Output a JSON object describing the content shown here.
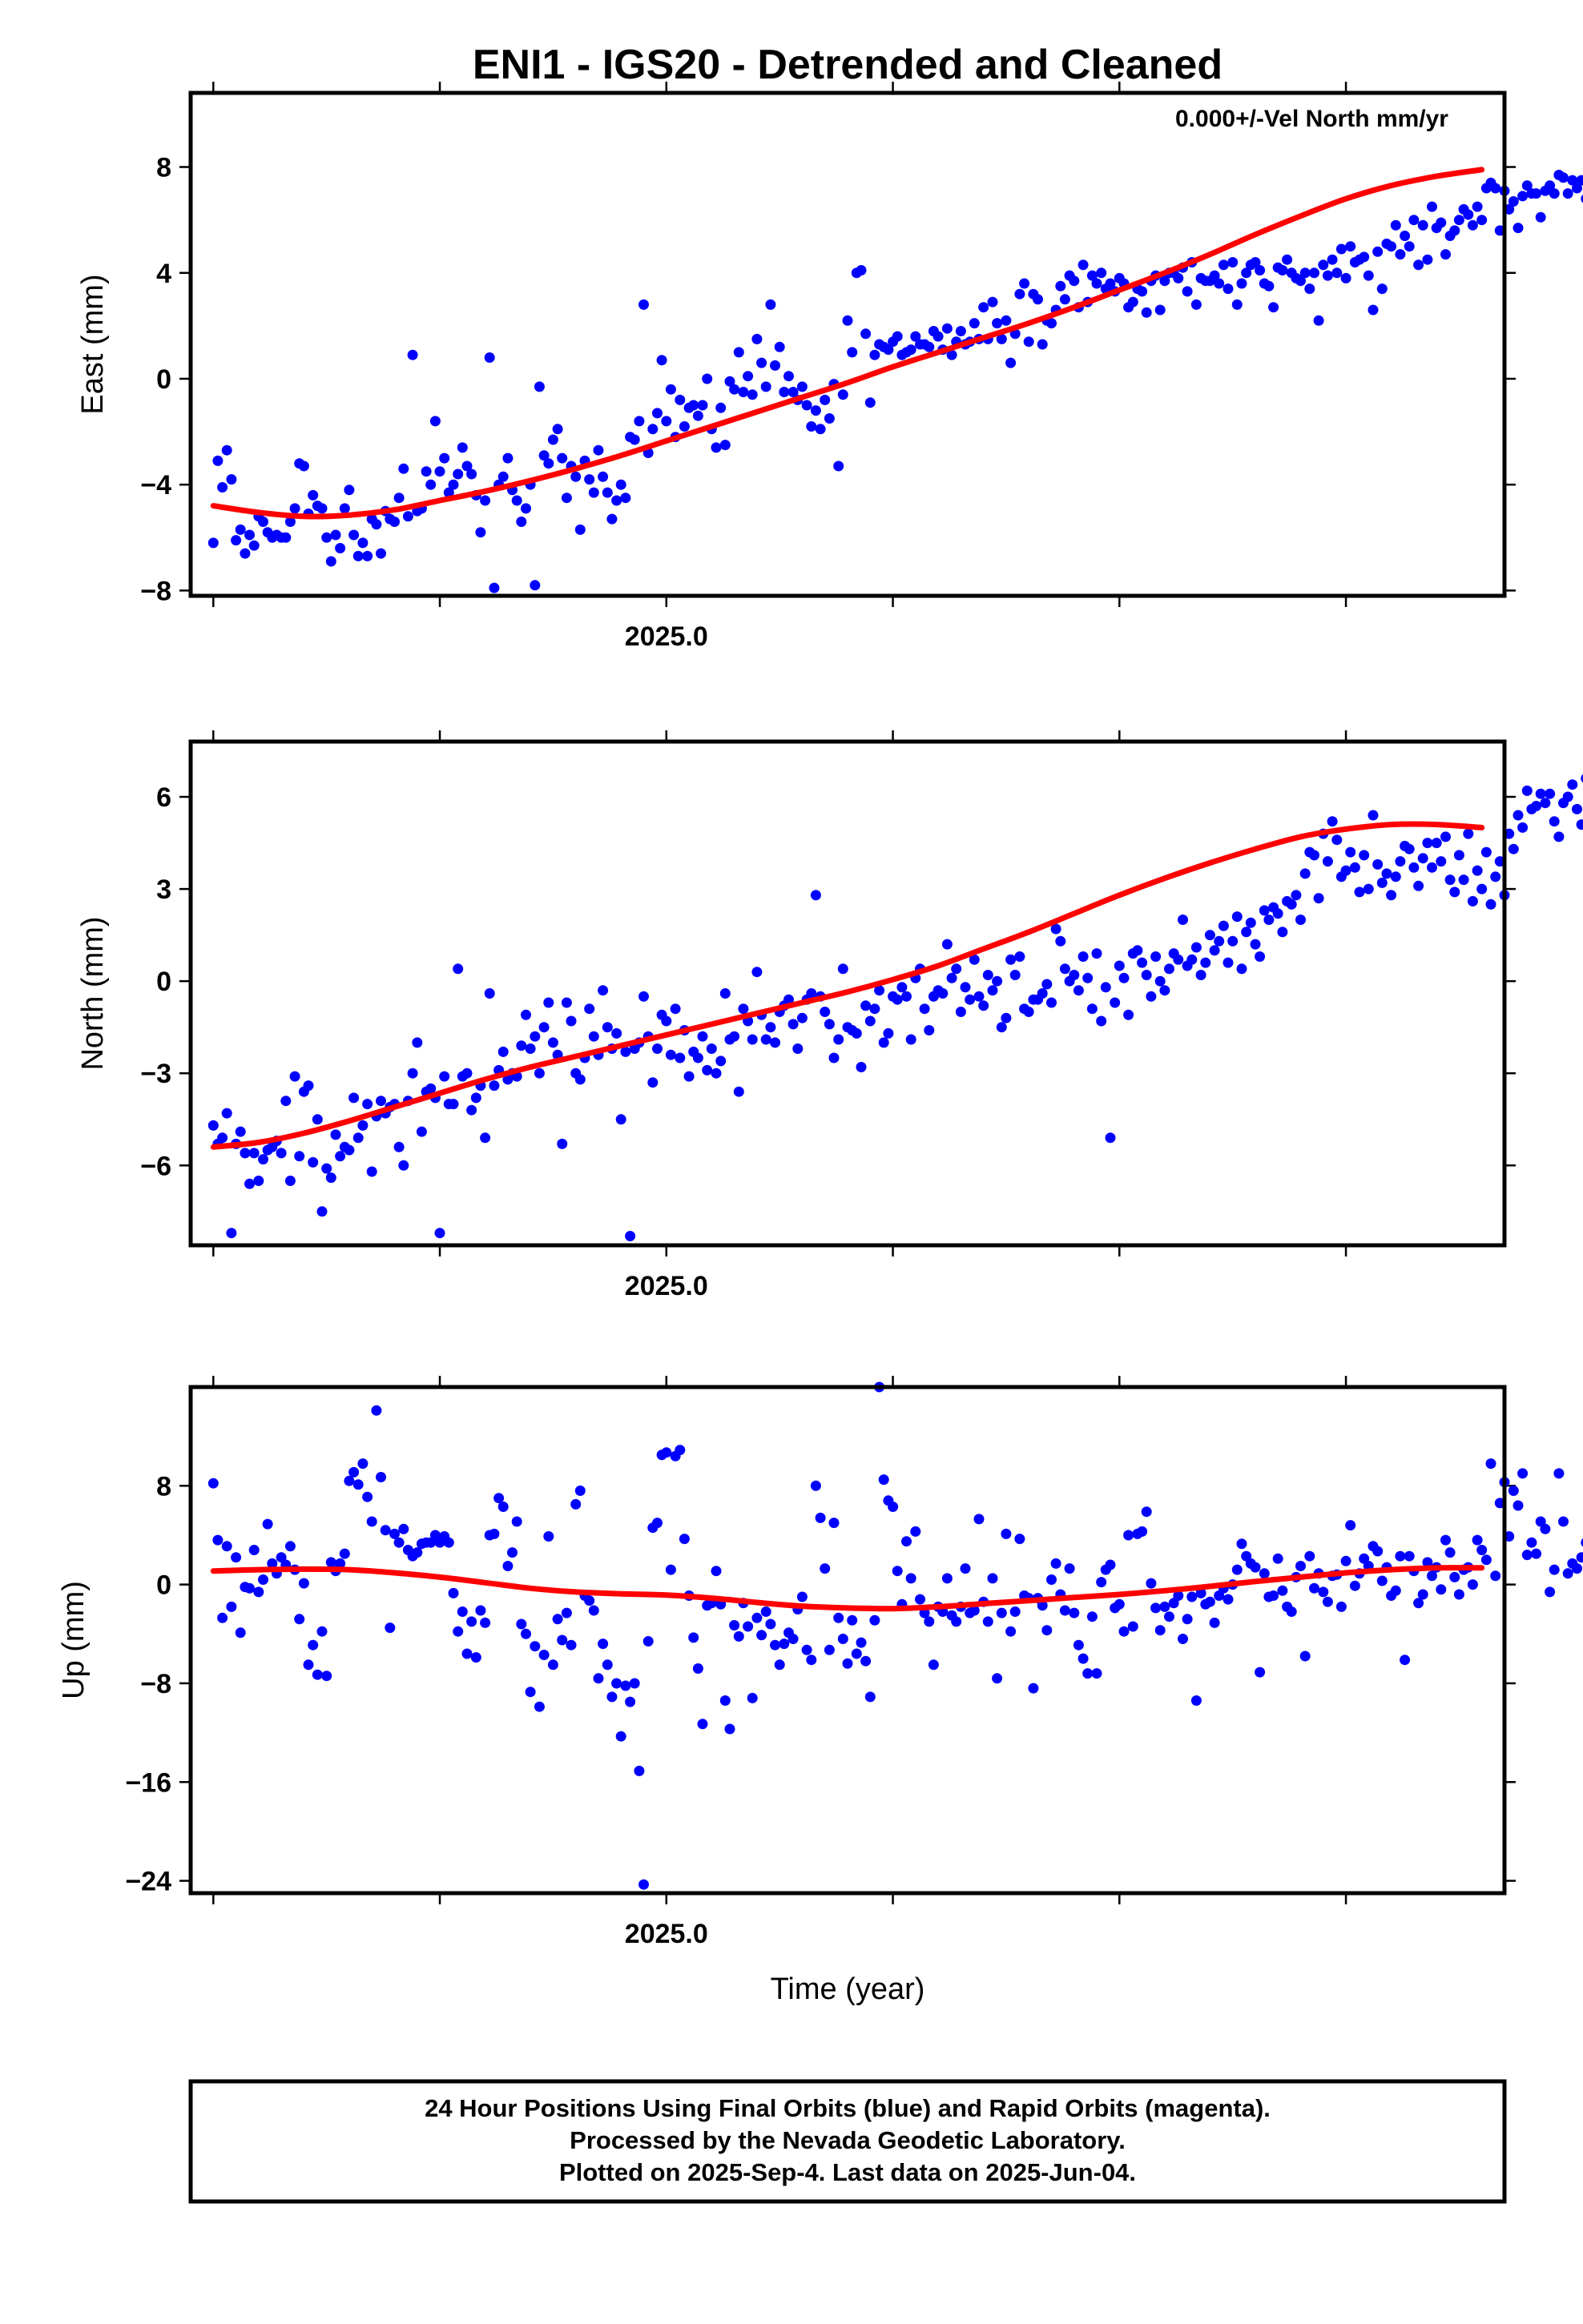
{
  "title": "ENI1 - IGS20 - Detrended and Cleaned",
  "xlabel": "Time (year)",
  "footer": [
    "24 Hour Positions Using Final Orbits (blue) and Rapid Orbits (magenta).",
    "Processed by the Nevada Geodetic Laboratory.",
    "Plotted on 2025-Sep-4. Last data on 2025-Jun-04."
  ],
  "colors": {
    "final_orbits": "#0000ff",
    "rapid_orbits": "#ff00ff",
    "fit": "#ff0000"
  },
  "chart_data": [
    {
      "type": "scatter",
      "name": "east",
      "ylabel": "East (mm)",
      "annotation": "0.000+/-Vel North mm/yr",
      "xlim": [
        2024.475,
        2025.925
      ],
      "ylim": [
        -8.2,
        10.8
      ],
      "yticks": [
        -8,
        -4,
        0,
        4,
        8
      ],
      "xtick_label": {
        "value": 2025.0,
        "text": "2025.0"
      },
      "x_start": 2024.5,
      "x_step": 0.005,
      "y": [
        -6.2,
        -3.1,
        -4.1,
        -2.7,
        -3.8,
        -6.1,
        -5.7,
        -6.6,
        -5.9,
        -6.3,
        -5.2,
        -5.4,
        -5.8,
        -6.0,
        -5.9,
        -6.0,
        -6.0,
        -5.4,
        -4.9,
        -3.2,
        -3.3,
        -5.1,
        -4.4,
        -4.8,
        -4.9,
        -6.0,
        -6.9,
        -5.9,
        -6.4,
        -4.9,
        -4.2,
        -5.9,
        -6.7,
        -6.2,
        -6.7,
        -5.3,
        -5.5,
        -6.6,
        -5.0,
        -5.3,
        -5.4,
        -4.5,
        -3.4,
        -5.2,
        0.9,
        -5.0,
        -4.9,
        -3.5,
        -4.0,
        -1.6,
        -3.5,
        -3.0,
        -4.3,
        -4.0,
        -3.6,
        -2.6,
        -3.3,
        -3.6,
        -4.4,
        -5.8,
        -4.6,
        0.8,
        -7.9,
        -4.0,
        -3.7,
        -3.0,
        -4.2,
        -4.6,
        -5.4,
        -4.9,
        -4.0,
        -7.8,
        -0.3,
        -2.9,
        -3.2,
        -2.3,
        -1.9,
        -3.0,
        -4.5,
        -3.3,
        -3.7,
        -5.7,
        -3.1,
        -3.8,
        -4.3,
        -2.7,
        -3.7,
        -4.3,
        -5.3,
        -4.6,
        -4.0,
        -4.5,
        -2.2,
        -2.3,
        -1.6,
        2.8,
        -2.8,
        -1.9,
        -1.3,
        0.7,
        -1.6,
        -0.4,
        -2.2,
        -0.8,
        -1.8,
        -1.1,
        -1.0,
        -1.4,
        -1.0,
        0.0,
        -1.9,
        -2.6,
        -1.1,
        -2.5,
        -0.1,
        -0.4,
        1.0,
        -0.5,
        0.1,
        -0.6,
        1.5,
        0.6,
        -0.3,
        2.8,
        0.5,
        1.2,
        -0.5,
        0.1,
        -0.5,
        -0.8,
        -0.3,
        -1.0,
        -1.8,
        -1.2,
        -1.9,
        -0.8,
        -1.5,
        -0.2,
        -3.3,
        -0.6,
        2.2,
        1.0,
        4.0,
        4.1,
        1.7,
        -0.9,
        0.9,
        1.3,
        1.2,
        1.1,
        1.4,
        1.6,
        0.9,
        1.0,
        1.1,
        1.6,
        1.3,
        1.3,
        1.2,
        1.8,
        1.6,
        1.1,
        1.9,
        0.9,
        1.4,
        1.8,
        1.3,
        1.4,
        2.1,
        1.5,
        2.7,
        1.5,
        2.9,
        2.1,
        1.5,
        2.2,
        0.6,
        1.7,
        3.2,
        3.6,
        1.4,
        3.2,
        3.0,
        1.3,
        2.2,
        2.1,
        2.6,
        3.5,
        3.0,
        3.9,
        3.7,
        2.7,
        4.3,
        2.9,
        3.9,
        3.6,
        4.0,
        3.4,
        3.6,
        3.3,
        3.8,
        3.6,
        2.7,
        2.9,
        3.4,
        3.3,
        2.5,
        3.7,
        3.9,
        2.6,
        3.7,
        4.0,
        4.0,
        3.8,
        4.2,
        3.3,
        4.4,
        2.8,
        3.8,
        3.7,
        3.7,
        3.9,
        3.6,
        4.3,
        3.4,
        4.4,
        2.8,
        3.6,
        4.0,
        4.3,
        4.4,
        4.1,
        3.6,
        3.5,
        2.7,
        4.2,
        4.1,
        4.5,
        4.0,
        3.8,
        3.7,
        4.0,
        3.4,
        4.0,
        2.2,
        4.3,
        3.9,
        4.5,
        4.0,
        4.9,
        3.8,
        5.0,
        4.4,
        4.5,
        4.6,
        3.9,
        2.6,
        4.8,
        3.4,
        5.1,
        5.0,
        5.8,
        4.7,
        5.4,
        5.0,
        6.0,
        4.3,
        5.8,
        4.5,
        6.5,
        5.7,
        5.9,
        4.7,
        5.4,
        5.6,
        6.0,
        6.4,
        6.2,
        5.8,
        6.5,
        6.0,
        7.2,
        7.4,
        7.2,
        5.6,
        7.1,
        6.4,
        6.7,
        5.7,
        6.9,
        7.3,
        7.0,
        7.0,
        6.1,
        7.1,
        7.3,
        7.0,
        7.7,
        7.6,
        7.0,
        7.5,
        7.2,
        7.5,
        6.8,
        7.6,
        7.0,
        7.2,
        6.6,
        7.0,
        7.4,
        6.9,
        7.4,
        8.2,
        7.8,
        6.2,
        7.0,
        8.2,
        9.2,
        8.1,
        6.5,
        9.6,
        8.6,
        5.5,
        9.1,
        10.0,
        8.5,
        9.6,
        8.7,
        8.2,
        8.5,
        8.0,
        6.7,
        7.6
      ],
      "fit": [
        [
          2024.5,
          -4.8
        ],
        [
          2024.55,
          -5.05
        ],
        [
          2024.6,
          -5.2
        ],
        [
          2024.65,
          -5.15
        ],
        [
          2024.7,
          -4.95
        ],
        [
          2024.75,
          -4.6
        ],
        [
          2024.8,
          -4.25
        ],
        [
          2024.85,
          -3.85
        ],
        [
          2024.9,
          -3.4
        ],
        [
          2024.95,
          -2.9
        ],
        [
          2025.0,
          -2.35
        ],
        [
          2025.05,
          -1.8
        ],
        [
          2025.1,
          -1.25
        ],
        [
          2025.15,
          -0.7
        ],
        [
          2025.2,
          -0.15
        ],
        [
          2025.25,
          0.45
        ],
        [
          2025.3,
          1.0
        ],
        [
          2025.35,
          1.55
        ],
        [
          2025.4,
          2.1
        ],
        [
          2025.45,
          2.7
        ],
        [
          2025.5,
          3.35
        ],
        [
          2025.55,
          4.0
        ],
        [
          2025.6,
          4.7
        ],
        [
          2025.65,
          5.45
        ],
        [
          2025.7,
          6.15
        ],
        [
          2025.75,
          6.8
        ],
        [
          2025.8,
          7.3
        ],
        [
          2025.85,
          7.65
        ],
        [
          2025.9,
          7.9
        ]
      ]
    },
    {
      "type": "scatter",
      "name": "north",
      "ylabel": "North (mm)",
      "xlim": [
        2024.475,
        2025.925
      ],
      "ylim": [
        -8.6,
        7.8
      ],
      "yticks": [
        -6,
        -3,
        0,
        3,
        6
      ],
      "xtick_label": {
        "value": 2025.0,
        "text": "2025.0"
      },
      "x_start": 2024.5,
      "x_step": 0.005,
      "y": [
        -4.7,
        -5.3,
        -5.1,
        -4.3,
        -8.2,
        -5.3,
        -4.9,
        -5.6,
        -6.6,
        -5.6,
        -6.5,
        -5.8,
        -5.5,
        -5.4,
        -5.2,
        -5.6,
        -3.9,
        -6.5,
        -3.1,
        -5.7,
        -3.6,
        -3.4,
        -5.9,
        -4.5,
        -7.5,
        -6.1,
        -6.4,
        -5.0,
        -5.7,
        -5.4,
        -5.5,
        -3.8,
        -5.1,
        -4.7,
        -4.0,
        -6.2,
        -4.4,
        -3.9,
        -4.3,
        -4.1,
        -4.0,
        -5.4,
        -6.0,
        -3.9,
        -3.0,
        -2.0,
        -4.9,
        -3.6,
        -3.5,
        -3.8,
        -8.2,
        -3.1,
        -4.0,
        -4.0,
        0.4,
        -3.1,
        -3.0,
        -4.2,
        -3.8,
        -3.4,
        -5.1,
        -0.4,
        -3.4,
        -2.9,
        -2.3,
        -3.2,
        -3.0,
        -3.1,
        -2.1,
        -1.1,
        -2.2,
        -1.8,
        -3.0,
        -1.5,
        -0.7,
        -2.0,
        -2.4,
        -5.3,
        -0.7,
        -1.3,
        -3.0,
        -3.2,
        -2.5,
        -0.9,
        -1.8,
        -2.4,
        -0.3,
        -1.5,
        -2.2,
        -1.7,
        -4.5,
        -2.3,
        -8.3,
        -2.2,
        -2.0,
        -0.5,
        -1.8,
        -3.3,
        -2.2,
        -1.1,
        -1.3,
        -2.4,
        -0.9,
        -2.5,
        -1.6,
        -3.1,
        -2.3,
        -2.5,
        -1.8,
        -2.9,
        -2.2,
        -3.0,
        -2.6,
        -0.4,
        -1.9,
        -1.8,
        -3.6,
        -0.9,
        -1.3,
        -1.9,
        0.3,
        -1.1,
        -1.9,
        -1.5,
        -2.0,
        -1.0,
        -0.8,
        -0.6,
        -1.4,
        -2.2,
        -1.2,
        -0.6,
        -0.4,
        2.8,
        -0.5,
        -1.0,
        -1.4,
        -2.5,
        -1.9,
        0.4,
        -1.5,
        -1.6,
        -1.7,
        -2.8,
        -0.8,
        -1.3,
        -0.9,
        -0.3,
        -2.0,
        -1.7,
        -0.5,
        -0.6,
        -0.2,
        -0.5,
        -1.9,
        0.1,
        0.4,
        -0.9,
        -1.6,
        -0.5,
        -0.3,
        -0.4,
        1.2,
        0.1,
        0.4,
        -1.0,
        -0.2,
        -0.6,
        0.7,
        -0.5,
        -0.8,
        0.2,
        -0.3,
        0.0,
        -1.5,
        -1.2,
        0.7,
        0.2,
        0.8,
        -0.9,
        -1.0,
        -0.6,
        -0.6,
        -0.4,
        -0.1,
        -0.7,
        1.7,
        1.3,
        0.4,
        0.0,
        0.2,
        -0.3,
        0.8,
        0.1,
        -0.9,
        0.9,
        -1.3,
        -0.2,
        -5.1,
        -0.7,
        0.5,
        0.1,
        -1.1,
        0.9,
        1.0,
        0.6,
        0.2,
        -0.5,
        0.8,
        0.0,
        -0.3,
        0.4,
        0.9,
        0.7,
        2.0,
        0.5,
        0.7,
        1.1,
        0.2,
        0.6,
        1.5,
        1.0,
        1.3,
        1.8,
        0.6,
        1.3,
        2.1,
        0.4,
        1.6,
        1.9,
        1.2,
        0.8,
        2.3,
        2.0,
        2.4,
        2.2,
        1.6,
        2.6,
        2.5,
        2.8,
        2.0,
        3.5,
        4.2,
        4.1,
        2.7,
        4.8,
        3.9,
        5.2,
        4.6,
        3.4,
        3.6,
        4.2,
        3.7,
        2.9,
        4.1,
        3.0,
        5.4,
        3.8,
        3.2,
        3.5,
        2.8,
        3.4,
        3.9,
        4.4,
        4.3,
        3.7,
        3.1,
        4.0,
        4.5,
        3.7,
        4.5,
        3.9,
        4.7,
        3.3,
        2.9,
        4.1,
        3.3,
        4.8,
        2.6,
        3.6,
        3.0,
        4.2,
        2.5,
        3.4,
        3.9,
        2.8,
        4.8,
        4.3,
        5.4,
        5.0,
        6.2,
        5.6,
        5.7,
        6.1,
        5.8,
        6.1,
        5.2,
        4.7,
        5.8,
        6.0,
        6.4,
        5.6,
        5.1,
        6.6,
        6.2,
        5.3,
        6.5,
        5.4,
        4.8,
        7.5,
        6.2,
        5.7,
        4.9,
        5.6,
        5.2,
        3.4,
        6.6,
        4.9,
        5.8,
        5.1,
        4.0,
        5.2,
        4.3,
        5.3,
        6.6,
        4.4,
        5.4,
        5.5,
        4.8,
        5.0,
        5.3,
        4.8,
        5.6,
        5.3,
        4.6,
        2.7
      ],
      "fit": [
        [
          2024.5,
          -5.4
        ],
        [
          2024.55,
          -5.25
        ],
        [
          2024.6,
          -4.95
        ],
        [
          2024.65,
          -4.55
        ],
        [
          2024.7,
          -4.1
        ],
        [
          2024.75,
          -3.65
        ],
        [
          2024.8,
          -3.2
        ],
        [
          2024.85,
          -2.8
        ],
        [
          2024.9,
          -2.45
        ],
        [
          2024.95,
          -2.1
        ],
        [
          2025.0,
          -1.75
        ],
        [
          2025.05,
          -1.4
        ],
        [
          2025.1,
          -1.05
        ],
        [
          2025.15,
          -0.7
        ],
        [
          2025.2,
          -0.35
        ],
        [
          2025.25,
          0.05
        ],
        [
          2025.3,
          0.5
        ],
        [
          2025.35,
          1.05
        ],
        [
          2025.4,
          1.6
        ],
        [
          2025.45,
          2.2
        ],
        [
          2025.5,
          2.8
        ],
        [
          2025.55,
          3.35
        ],
        [
          2025.6,
          3.85
        ],
        [
          2025.65,
          4.3
        ],
        [
          2025.7,
          4.7
        ],
        [
          2025.75,
          4.95
        ],
        [
          2025.8,
          5.1
        ],
        [
          2025.85,
          5.1
        ],
        [
          2025.9,
          5.0
        ]
      ]
    },
    {
      "type": "scatter",
      "name": "up",
      "ylabel": "Up (mm)",
      "xlim": [
        2024.475,
        2025.925
      ],
      "ylim": [
        -25,
        16
      ],
      "yticks": [
        -24,
        -16,
        -8,
        0,
        8
      ],
      "xtick_label": {
        "value": 2025.0,
        "text": "2025.0"
      },
      "x_start": 2024.5,
      "x_step": 0.005,
      "y": [
        8.2,
        3.6,
        -2.7,
        3.1,
        -1.8,
        2.2,
        -3.9,
        -0.2,
        -0.3,
        2.8,
        -0.6,
        0.4,
        4.9,
        1.7,
        0.9,
        2.2,
        1.6,
        3.1,
        1.2,
        -2.8,
        0.1,
        -6.5,
        -4.9,
        -7.3,
        -3.8,
        -7.4,
        1.8,
        1.1,
        1.7,
        2.5,
        8.4,
        9.1,
        8.1,
        9.8,
        7.1,
        5.1,
        14.1,
        8.7,
        4.4,
        -3.5,
        4.1,
        3.4,
        4.5,
        2.8,
        2.3,
        2.6,
        3.3,
        3.4,
        3.4,
        4.0,
        3.4,
        3.9,
        3.4,
        -0.7,
        -3.8,
        -2.2,
        -5.6,
        -3.0,
        -5.9,
        -2.1,
        -3.1,
        4.0,
        4.1,
        7.0,
        6.3,
        1.5,
        2.6,
        5.1,
        -3.2,
        -4.0,
        -8.7,
        -5.0,
        -9.9,
        -5.7,
        3.9,
        -6.5,
        -2.8,
        -4.5,
        -2.3,
        -4.9,
        6.5,
        7.6,
        -0.9,
        -1.3,
        -2.1,
        -7.6,
        -4.8,
        -6.5,
        -9.1,
        -8.0,
        -12.3,
        -8.2,
        -9.5,
        -8.0,
        -15.1,
        -24.3,
        -4.6,
        4.6,
        5.0,
        10.5,
        10.7,
        1.2,
        10.4,
        10.9,
        3.7,
        -0.9,
        -4.3,
        -6.8,
        -11.3,
        -1.7,
        -1.5,
        1.1,
        -1.6,
        -9.4,
        -11.7,
        -3.3,
        -4.2,
        -1.5,
        -3.4,
        -9.2,
        -2.7,
        -4.1,
        -2.2,
        -3.2,
        -4.9,
        -6.5,
        -4.8,
        -3.9,
        -4.4,
        -2.0,
        -1.0,
        -5.3,
        -6.1,
        8.0,
        5.4,
        1.3,
        -5.3,
        5.0,
        -2.7,
        -4.4,
        -6.4,
        -2.9,
        -5.6,
        -4.7,
        -6.2,
        -9.1,
        -2.9,
        16.0,
        8.5,
        6.8,
        6.3,
        1.1,
        -1.6,
        3.5,
        0.5,
        4.3,
        -1.2,
        -2.3,
        -3.0,
        -6.5,
        -1.8,
        -2.2,
        0.5,
        -2.5,
        -3.0,
        -1.8,
        1.3,
        -2.3,
        -2.1,
        5.3,
        -1.4,
        -3.0,
        0.5,
        -7.6,
        -2.3,
        4.1,
        -3.8,
        -2.2,
        3.7,
        -0.9,
        -1.1,
        -8.4,
        -1.1,
        -1.7,
        -3.7,
        0.4,
        1.7,
        -0.8,
        -2.1,
        1.3,
        -2.3,
        -4.9,
        -6.0,
        -7.2,
        -2.6,
        -7.2,
        0.2,
        1.2,
        1.6,
        -1.9,
        -1.6,
        -3.8,
        4.0,
        -3.4,
        4.1,
        4.3,
        5.9,
        0.1,
        -1.9,
        -3.7,
        -1.8,
        -2.6,
        -1.5,
        -0.9,
        -4.4,
        -2.8,
        -1.0,
        -9.4,
        -0.7,
        -1.6,
        -1.4,
        -3.1,
        -0.9,
        -0.3,
        -1.2,
        0.0,
        1.2,
        3.3,
        2.3,
        1.7,
        1.4,
        -7.1,
        0.9,
        -1.0,
        -0.9,
        2.1,
        -0.5,
        -1.8,
        -2.2,
        0.6,
        1.5,
        -5.8,
        2.3,
        -0.3,
        0.9,
        -0.6,
        -1.4,
        0.7,
        0.8,
        -1.8,
        1.9,
        4.8,
        -0.1,
        0.9,
        2.1,
        1.5,
        3.1,
        2.7,
        0.3,
        1.4,
        -0.9,
        -0.5,
        2.3,
        -6.1,
        2.3,
        1.1,
        -1.5,
        -0.8,
        1.8,
        0.7,
        1.4,
        -0.4,
        3.6,
        2.6,
        0.6,
        -0.8,
        1.2,
        1.4,
        0.0,
        3.6,
        2.8,
        2.0,
        9.8,
        0.7,
        6.6,
        8.3,
        3.9,
        7.6,
        6.4,
        9.0,
        2.4,
        3.4,
        2.5,
        5.1,
        4.5,
        -0.6,
        1.2,
        9.0,
        5.1,
        0.9,
        1.7,
        1.3,
        2.2,
        3.4,
        -0.4,
        5.5,
        9.0
      ],
      "fit": [
        [
          2024.5,
          1.1
        ],
        [
          2024.55,
          1.2
        ],
        [
          2024.6,
          1.25
        ],
        [
          2024.65,
          1.2
        ],
        [
          2024.7,
          0.95
        ],
        [
          2024.75,
          0.6
        ],
        [
          2024.8,
          0.15
        ],
        [
          2024.85,
          -0.3
        ],
        [
          2024.9,
          -0.6
        ],
        [
          2024.95,
          -0.75
        ],
        [
          2025.0,
          -0.85
        ],
        [
          2025.05,
          -1.1
        ],
        [
          2025.1,
          -1.45
        ],
        [
          2025.15,
          -1.75
        ],
        [
          2025.2,
          -1.9
        ],
        [
          2025.25,
          -1.95
        ],
        [
          2025.3,
          -1.8
        ],
        [
          2025.35,
          -1.55
        ],
        [
          2025.4,
          -1.3
        ],
        [
          2025.45,
          -1.05
        ],
        [
          2025.5,
          -0.8
        ],
        [
          2025.55,
          -0.5
        ],
        [
          2025.6,
          -0.15
        ],
        [
          2025.65,
          0.25
        ],
        [
          2025.7,
          0.6
        ],
        [
          2025.75,
          0.95
        ],
        [
          2025.8,
          1.2
        ],
        [
          2025.85,
          1.35
        ],
        [
          2025.9,
          1.35
        ]
      ]
    }
  ]
}
